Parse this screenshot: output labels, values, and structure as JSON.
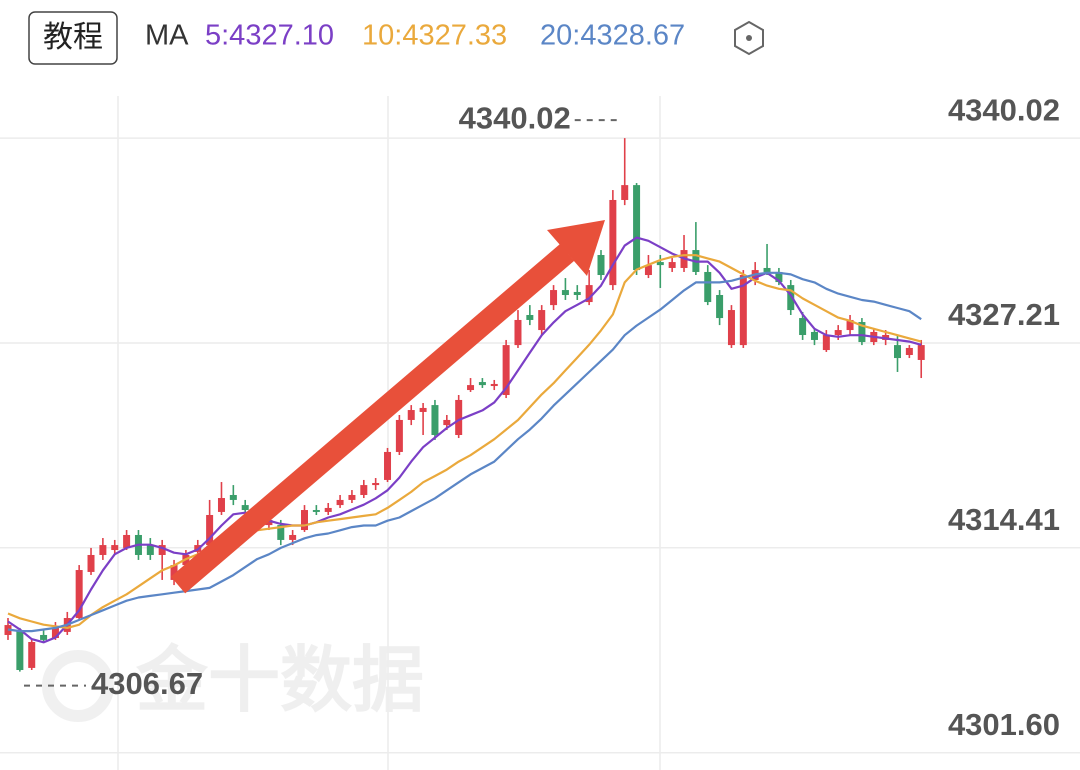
{
  "header": {
    "button": "教程",
    "ma_label": "MA"
  },
  "chart_data": {
    "type": "candlestick",
    "up_color": "#e0404a",
    "down_color": "#3a9e6a",
    "open": [
      4308.96,
      4309.27,
      4306.9,
      4308.96,
      4308.77,
      4309.15,
      4310.02,
      4312.9,
      4313.96,
      4314.27,
      4314.4,
      4315.21,
      4314.58,
      4313.96,
      4312.4,
      4313.33,
      4314.15,
      4314.58,
      4316.65,
      4317.71,
      4317.08,
      4316.15,
      4315.83,
      4315.83,
      4314.9,
      4315.52,
      4316.77,
      4316.65,
      4317.08,
      4317.4,
      4317.71,
      4318.33,
      4318.65,
      4320.4,
      4322.4,
      4322.9,
      4323.33,
      4322.08,
      4321.46,
      4324.27,
      4324.77,
      4324.52,
      4323.96,
      4327.08,
      4328.96,
      4328.02,
      4329.58,
      4330.52,
      4330.4,
      4329.77,
      4332.71,
      4330.83,
      4336.15,
      4337.08,
      4331.46,
      4332.27,
      4331.9,
      4331.9,
      4333.02,
      4331.65,
      4330.21,
      4327.08,
      4327.08,
      4331.15,
      4331.9,
      4331.65,
      4330.83,
      4328.77,
      4327.9,
      4326.77,
      4327.71,
      4328.02,
      4328.52,
      4327.27,
      4327.4,
      4327.08,
      4326.46,
      4326.15
    ],
    "high": [
      4310.02,
      4309.4,
      4308.65,
      4309.27,
      4309.77,
      4310.4,
      4313.33,
      4314.4,
      4315.02,
      4314.9,
      4315.52,
      4315.52,
      4315.02,
      4314.9,
      4313.65,
      4314.27,
      4314.9,
      4317.4,
      4318.52,
      4318.33,
      4317.4,
      4316.77,
      4316.46,
      4316.15,
      4315.52,
      4317.08,
      4317.08,
      4317.21,
      4317.71,
      4318.02,
      4318.65,
      4318.77,
      4320.65,
      4322.71,
      4323.33,
      4323.46,
      4323.65,
      4322.71,
      4323.96,
      4325.02,
      4325.02,
      4324.9,
      4327.4,
      4329.27,
      4329.58,
      4329.58,
      4330.83,
      4331.27,
      4330.83,
      4331.77,
      4333.02,
      4336.77,
      4340.02,
      4337.21,
      4332.71,
      4332.71,
      4332.52,
      4333.96,
      4334.77,
      4332.08,
      4330.52,
      4329.58,
      4331.77,
      4332.27,
      4333.4,
      4331.9,
      4331.15,
      4329.15,
      4328.15,
      4328.02,
      4328.33,
      4328.96,
      4328.77,
      4328.15,
      4328.02,
      4327.71,
      4327.08,
      4327.4
    ],
    "low": [
      4308.65,
      4306.67,
      4306.77,
      4308.52,
      4308.65,
      4308.96,
      4309.9,
      4312.71,
      4313.65,
      4313.96,
      4314.27,
      4313.65,
      4313.65,
      4312.4,
      4312.08,
      4313.02,
      4313.96,
      4314.4,
      4316.46,
      4317.08,
      4316.46,
      4315.83,
      4315.52,
      4314.58,
      4314.58,
      4315.4,
      4316.46,
      4316.46,
      4316.9,
      4317.21,
      4317.52,
      4318.02,
      4318.52,
      4320.21,
      4322.08,
      4321.46,
      4321.15,
      4321.77,
      4321.27,
      4324.15,
      4324.4,
      4324.27,
      4323.77,
      4326.9,
      4328.33,
      4327.71,
      4329.27,
      4329.9,
      4329.9,
      4329.58,
      4331.15,
      4330.52,
      4335.83,
      4331.46,
      4331.27,
      4330.65,
      4331.65,
      4331.65,
      4331.46,
      4329.58,
      4328.33,
      4326.9,
      4326.9,
      4330.83,
      4331.46,
      4330.83,
      4328.96,
      4327.4,
      4327.08,
      4326.65,
      4327.4,
      4327.71,
      4327.08,
      4327.08,
      4327.08,
      4325.4,
      4326.27,
      4325.02
    ],
    "close": [
      4309.58,
      4306.77,
      4308.52,
      4308.65,
      4309.4,
      4310.02,
      4313.02,
      4313.96,
      4314.58,
      4314.58,
      4315.21,
      4313.96,
      4313.96,
      4314.58,
      4313.33,
      4313.96,
      4314.58,
      4316.46,
      4317.52,
      4317.4,
      4316.77,
      4316.46,
      4316.15,
      4314.9,
      4315.21,
      4316.77,
      4316.65,
      4316.9,
      4317.4,
      4317.71,
      4318.33,
      4318.46,
      4320.4,
      4322.4,
      4323.02,
      4323.15,
      4321.46,
      4322.4,
      4323.65,
      4324.58,
      4324.58,
      4324.65,
      4327.08,
      4328.65,
      4328.65,
      4329.27,
      4330.52,
      4330.21,
      4330.21,
      4330.83,
      4331.46,
      4336.15,
      4337.08,
      4331.77,
      4332.08,
      4332.08,
      4332.27,
      4333.02,
      4331.65,
      4329.77,
      4328.77,
      4329.27,
      4331.46,
      4331.77,
      4331.65,
      4331.02,
      4329.27,
      4327.71,
      4327.4,
      4327.71,
      4328.02,
      4328.65,
      4327.27,
      4327.9,
      4327.71,
      4326.27,
      4326.9,
      4327.08
    ],
    "series": [
      {
        "name": "5:4327.10",
        "color": "#7b3fc6",
        "values": [
          4309.8,
          4309.3,
          4308.7,
          4308.5,
          4308.8,
          4309.6,
          4310.5,
          4311.8,
          4313.0,
          4314.0,
          4314.4,
          4314.6,
          4314.6,
          4314.4,
          4314.1,
          4314.0,
          4314.3,
          4315.0,
          4315.8,
          4316.5,
          4316.6,
          4316.5,
          4316.1,
          4315.9,
          4315.8,
          4315.8,
          4316.0,
          4316.3,
          4316.5,
          4316.8,
          4317.1,
          4317.5,
          4318.0,
          4318.8,
          4319.8,
          4320.7,
          4321.3,
          4321.9,
          4322.4,
          4322.7,
          4323.0,
          4323.5,
          4324.4,
          4325.5,
          4326.6,
          4327.7,
          4328.5,
          4329.2,
          4329.6,
          4330.0,
          4330.8,
          4332.1,
          4333.3,
          4333.8,
          4333.6,
          4333.2,
          4332.8,
          4332.5,
          4332.3,
          4332.3,
          4331.6,
          4330.6,
          4330.8,
          4331.3,
          4331.6,
          4331.1,
          4330.2,
          4329.0,
          4328.1,
          4327.7,
          4327.6,
          4327.7,
          4327.7,
          4327.6,
          4327.5,
          4327.4,
          4327.3,
          4327.1
        ]
      },
      {
        "name": "10:4327.33",
        "color": "#eaa93c",
        "values": [
          4310.3,
          4310.0,
          4309.8,
          4309.6,
          4309.5,
          4309.4,
          4309.6,
          4310.2,
          4310.7,
          4311.1,
          4311.5,
          4312.0,
          4312.5,
          4313.0,
          4313.3,
          4313.7,
          4314.0,
          4314.2,
          4314.5,
          4314.9,
          4315.2,
          4315.5,
          4315.6,
          4315.7,
          4315.8,
          4315.8,
          4316.0,
          4316.1,
          4316.2,
          4316.3,
          4316.4,
          4316.5,
          4316.9,
          4317.4,
          4317.9,
          4318.5,
          4318.9,
          4319.3,
          4319.8,
          4320.2,
          4320.7,
          4321.2,
          4321.8,
          4322.4,
          4323.2,
          4324.0,
          4324.7,
          4325.5,
          4326.3,
          4327.1,
          4328.0,
          4329.0,
          4331.0,
          4331.8,
          4332.1,
          4332.4,
          4332.6,
          4332.7,
          4332.7,
          4332.5,
          4332.3,
          4331.9,
          4331.5,
          4331.1,
          4330.8,
          4330.6,
          4330.5,
          4330.0,
          4329.6,
          4329.2,
          4328.8,
          4328.6,
          4328.3,
          4328.1,
          4327.9,
          4327.7,
          4327.5,
          4327.3
        ]
      },
      {
        "name": "20:4328.67",
        "color": "#5b86c6",
        "values": [
          4309.3,
          4309.2,
          4309.2,
          4309.3,
          4309.4,
          4309.6,
          4309.9,
          4310.2,
          4310.5,
          4310.8,
          4311.1,
          4311.3,
          4311.4,
          4311.5,
          4311.6,
          4311.7,
          4311.8,
          4311.9,
          4312.3,
          4312.7,
          4313.2,
          4313.7,
          4314.0,
          4314.4,
          4314.7,
          4315.0,
          4315.2,
          4315.3,
          4315.5,
          4315.7,
          4315.8,
          4315.8,
          4316.1,
          4316.3,
          4316.7,
          4317.1,
          4317.5,
          4318.0,
          4318.5,
          4319.0,
          4319.4,
          4319.8,
          4320.5,
          4321.2,
          4321.8,
          4322.5,
          4323.3,
          4324.0,
          4324.7,
          4325.4,
          4326.1,
          4326.8,
          4327.7,
          4328.3,
          4328.8,
          4329.3,
          4329.9,
          4330.5,
          4331.0,
          4331.0,
          4331.0,
          4331.1,
          4331.3,
          4331.5,
          4331.6,
          4331.6,
          4331.5,
          4331.2,
          4331.0,
          4330.6,
          4330.3,
          4330.1,
          4329.9,
          4329.8,
          4329.6,
          4329.4,
          4329.2,
          4328.7
        ]
      }
    ],
    "ylim": [
      4300.52,
      4348.65
    ],
    "yticks": [
      {
        "value": 4301.6,
        "label": "4301.60"
      },
      4314.41,
      4327.21,
      4340.02
    ],
    "grid": true,
    "max_value": 4340.02,
    "min_value": 4306.67,
    "watermark": "金十数据"
  }
}
